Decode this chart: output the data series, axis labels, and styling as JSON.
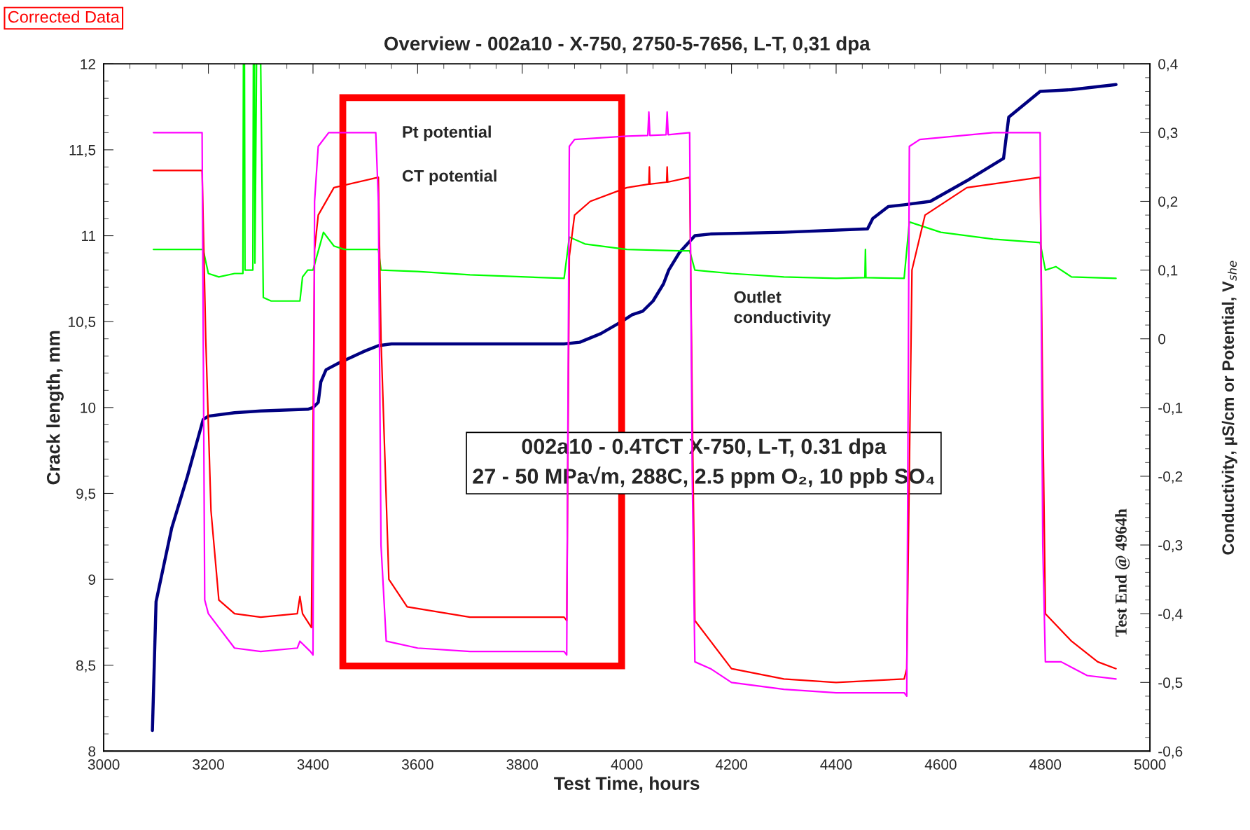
{
  "chart_data": {
    "type": "line",
    "title": "Overview - 002a10 - X-750, 2750-5-7656, L-T, 0,31 dpa",
    "xlabel": "Test Time, hours",
    "ylabel": "Crack length, mm",
    "y2label": "Conductivity, µS/cm or Potential, V$_{she}$",
    "xlim": [
      3000,
      5000
    ],
    "xticks": [
      3000,
      3200,
      3400,
      3600,
      3800,
      4000,
      4200,
      4400,
      4600,
      4800,
      5000
    ],
    "ylim": [
      8,
      12
    ],
    "yticks": [
      8,
      {
        "value": 8.5,
        "label": "8,5"
      },
      9,
      {
        "value": 9.5,
        "label": "9,5"
      },
      10,
      {
        "value": 10.5,
        "label": "10,5"
      },
      11,
      {
        "value": 11.5,
        "label": "11,5"
      },
      12
    ],
    "y2lim": [
      -0.6,
      0.4
    ],
    "y2ticks": [
      {
        "value": -0.6,
        "label": "-0,6"
      },
      {
        "value": -0.5,
        "label": "-0,5"
      },
      {
        "value": -0.4,
        "label": "-0,4"
      },
      {
        "value": -0.3,
        "label": "-0,3"
      },
      {
        "value": -0.2,
        "label": "-0,2"
      },
      {
        "value": -0.1,
        "label": "-0,1"
      },
      0,
      {
        "value": 0.1,
        "label": "0,1"
      },
      {
        "value": 0.2,
        "label": "0,2"
      },
      {
        "value": 0.3,
        "label": "0,3"
      },
      {
        "value": 0.4,
        "label": "0,4"
      }
    ],
    "grid": false,
    "marker": "none",
    "line_style": "solid",
    "series": [
      {
        "color": "#000080",
        "x": [
          3093,
          3100,
          3130,
          3160,
          3190,
          3200,
          3250,
          3300,
          3390,
          3400,
          3410,
          3415,
          3425,
          3450,
          3500,
          3525,
          3550,
          3880,
          3910,
          3950,
          3990,
          4010,
          4030,
          4050,
          4070,
          4080,
          4100,
          4130,
          4160,
          4300,
          4460,
          4470,
          4500,
          4530,
          4580,
          4650,
          4720,
          4730,
          4790,
          4850,
          4935
        ],
        "values": [
          8.12,
          8.87,
          9.3,
          9.6,
          9.93,
          9.95,
          9.97,
          9.98,
          9.99,
          10.0,
          10.03,
          10.15,
          10.22,
          10.26,
          10.33,
          10.36,
          10.37,
          10.37,
          10.38,
          10.43,
          10.5,
          10.54,
          10.56,
          10.62,
          10.72,
          10.8,
          10.9,
          11.0,
          11.01,
          11.02,
          11.04,
          11.1,
          11.17,
          11.18,
          11.2,
          11.32,
          11.45,
          11.69,
          11.84,
          11.85,
          11.88
        ]
      },
      {
        "name": "Outlet\nconductivity",
        "color": "#00ff00",
        "axis": "y2",
        "x": [
          3095,
          3190,
          3200,
          3220,
          3250,
          3266,
          3267,
          3269,
          3270,
          3285,
          3286,
          3288,
          3289,
          3292,
          3300,
          3305,
          3320,
          3375,
          3380,
          3390,
          3400,
          3420,
          3440,
          3460,
          3525,
          3530,
          3600,
          3700,
          3880,
          3890,
          3920,
          4000,
          4100,
          4120,
          4130,
          4200,
          4300,
          4400,
          4455,
          4456,
          4457,
          4530,
          4540,
          4600,
          4700,
          4790,
          4800,
          4820,
          4850,
          4935
        ],
        "values": [
          0.13,
          0.13,
          0.095,
          0.09,
          0.095,
          0.095,
          0.4,
          0.4,
          0.1,
          0.1,
          0.4,
          0.4,
          0.11,
          0.4,
          0.4,
          0.06,
          0.055,
          0.055,
          0.09,
          0.1,
          0.1,
          0.155,
          0.135,
          0.13,
          0.13,
          0.1,
          0.098,
          0.093,
          0.088,
          0.148,
          0.138,
          0.13,
          0.128,
          0.128,
          0.1,
          0.095,
          0.09,
          0.088,
          0.089,
          0.13,
          0.089,
          0.088,
          0.17,
          0.155,
          0.145,
          0.14,
          0.1,
          0.105,
          0.09,
          0.088
        ]
      },
      {
        "name": "CT potential",
        "color": "#ff0000",
        "axis": "y2",
        "x": [
          3095,
          3188,
          3195,
          3205,
          3220,
          3250,
          3300,
          3370,
          3375,
          3380,
          3397,
          3403,
          3410,
          3440,
          3525,
          3530,
          3545,
          3580,
          3700,
          3880,
          3885,
          3890,
          3900,
          3930,
          4000,
          4042,
          4043,
          4044,
          4076,
          4077,
          4078,
          4120,
          4125,
          4130,
          4160,
          4200,
          4300,
          4400,
          4530,
          4535,
          4545,
          4570,
          4650,
          4790,
          4795,
          4800,
          4850,
          4900,
          4935
        ],
        "values": [
          0.245,
          0.245,
          0.0,
          -0.25,
          -0.38,
          -0.4,
          -0.405,
          -0.4,
          -0.375,
          -0.4,
          -0.42,
          0.13,
          0.18,
          0.22,
          0.235,
          0.0,
          -0.35,
          -0.39,
          -0.405,
          -0.405,
          -0.41,
          0.12,
          0.18,
          0.2,
          0.22,
          0.225,
          0.25,
          0.225,
          0.228,
          0.25,
          0.228,
          0.235,
          -0.1,
          -0.41,
          -0.44,
          -0.48,
          -0.495,
          -0.5,
          -0.495,
          -0.48,
          0.1,
          0.18,
          0.22,
          0.235,
          -0.1,
          -0.4,
          -0.44,
          -0.47,
          -0.48
        ]
      },
      {
        "name": "Pt potential",
        "color": "#ff00ff",
        "axis": "y2",
        "x": [
          3095,
          3188,
          3193,
          3200,
          3220,
          3250,
          3300,
          3370,
          3375,
          3395,
          3400,
          3403,
          3410,
          3430,
          3520,
          3525,
          3530,
          3540,
          3600,
          3700,
          3880,
          3885,
          3890,
          3900,
          4000,
          4040,
          4042,
          4044,
          4075,
          4077,
          4079,
          4120,
          4125,
          4130,
          4160,
          4200,
          4300,
          4400,
          4530,
          4535,
          4540,
          4560,
          4700,
          4790,
          4795,
          4800,
          4830,
          4880,
          4935
        ],
        "values": [
          0.3,
          0.3,
          -0.38,
          -0.4,
          -0.42,
          -0.45,
          -0.455,
          -0.45,
          -0.44,
          -0.455,
          -0.46,
          0.2,
          0.28,
          0.3,
          0.3,
          0.2,
          -0.3,
          -0.44,
          -0.45,
          -0.455,
          -0.455,
          -0.46,
          0.28,
          0.29,
          0.295,
          0.296,
          0.33,
          0.296,
          0.297,
          0.33,
          0.297,
          0.3,
          -0.2,
          -0.47,
          -0.48,
          -0.5,
          -0.51,
          -0.515,
          -0.515,
          -0.52,
          0.28,
          0.29,
          0.3,
          0.3,
          -0.3,
          -0.47,
          -0.47,
          -0.49,
          -0.495
        ]
      }
    ],
    "annotations": [
      "Corrected Data",
      "002a10 - 0.4TCT X-750, L-T, 0.31 dpa\n27 - 50 MPa√m, 288C, 2.5 ppm O₂, 10 ppb SO₄",
      "Test End @ 4964h"
    ]
  }
}
